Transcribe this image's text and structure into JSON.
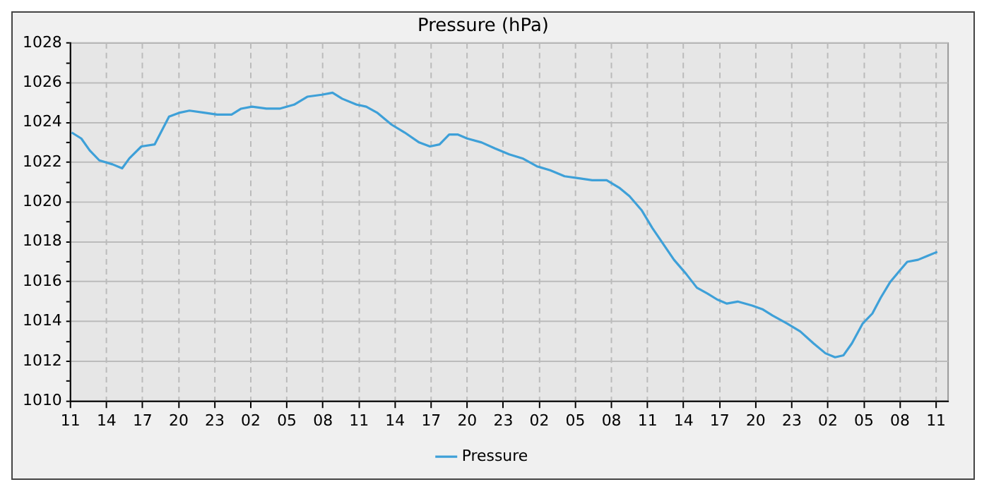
{
  "chart_data": {
    "type": "line",
    "title": "Pressure (hPa)",
    "series": [
      {
        "name": "Pressure",
        "color": "#3ea0d8",
        "x": [
          "--01-01T11:06",
          "--01-01T11:54",
          "--01-01T12:36",
          "--01-01T13:24",
          "--01-01T14:30",
          "--01-01T15:18",
          "--01-01T15:54",
          "--01-01T16:54",
          "--01-01T18:00",
          "--01-01T18:36",
          "--01-01T19:12",
          "--01-01T20:06",
          "--01-01T20:54",
          "--01-01T22:06",
          "--01-01T23:12",
          "--01-02T00:24",
          "--01-02T01:12",
          "--01-02T02:06",
          "--01-02T03:18",
          "--01-02T04:24",
          "--01-02T05:36",
          "--01-02T06:42",
          "--01-02T07:54",
          "--01-02T08:48",
          "--01-02T09:36",
          "--01-02T10:48",
          "--01-02T11:36",
          "--01-02T12:30",
          "--01-02T13:42",
          "--01-02T14:48",
          "--01-02T16:00",
          "--01-02T16:54",
          "--01-02T17:42",
          "--01-02T18:30",
          "--01-02T19:12",
          "--01-02T20:00",
          "--01-02T21:12",
          "--01-02T22:18",
          "--01-02T23:30",
          "--01-03T00:36",
          "--01-03T01:48",
          "--01-03T02:54",
          "--01-03T04:06",
          "--01-03T05:18",
          "--01-03T06:24",
          "--01-03T07:36",
          "--01-03T08:42",
          "--01-03T09:30",
          "--01-03T10:30",
          "--01-03T11:24",
          "--01-03T12:18",
          "--01-03T13:12",
          "--01-03T14:12",
          "--01-03T15:06",
          "--01-03T16:00",
          "--01-03T16:48",
          "--01-03T17:36",
          "--01-03T18:30",
          "--01-03T19:42",
          "--01-03T20:36",
          "--01-03T21:24",
          "--01-03T22:36",
          "--01-03T23:42",
          "--01-04T00:48",
          "--01-04T01:48",
          "--01-04T02:36",
          "--01-04T03:18",
          "--01-04T04:00",
          "--01-04T04:54",
          "--01-04T05:42",
          "--01-04T06:24",
          "--01-04T07:12",
          "--01-04T07:54",
          "--01-04T08:36",
          "--01-04T09:30",
          "--01-04T10:18",
          "--01-04T11:06"
        ],
        "values": [
          1023.5,
          1023.2,
          1022.6,
          1022.1,
          1021.9,
          1021.7,
          1022.2,
          1022.8,
          1022.9,
          1023.6,
          1024.3,
          1024.5,
          1024.6,
          1024.5,
          1024.4,
          1024.4,
          1024.7,
          1024.8,
          1024.7,
          1024.7,
          1024.9,
          1025.3,
          1025.4,
          1025.5,
          1025.2,
          1024.9,
          1024.8,
          1024.5,
          1023.9,
          1023.5,
          1023.0,
          1022.8,
          1022.9,
          1023.4,
          1023.4,
          1023.2,
          1023.0,
          1022.7,
          1022.4,
          1022.2,
          1021.8,
          1021.6,
          1021.3,
          1021.2,
          1021.1,
          1021.1,
          1020.7,
          1020.3,
          1019.6,
          1018.7,
          1017.9,
          1017.1,
          1016.4,
          1015.7,
          1015.4,
          1015.1,
          1014.9,
          1015.0,
          1014.8,
          1014.6,
          1014.3,
          1013.9,
          1013.5,
          1012.9,
          1012.4,
          1012.2,
          1012.3,
          1012.9,
          1013.9,
          1014.4,
          1015.2,
          1016.0,
          1016.5,
          1017.0,
          1017.1,
          1017.3,
          1017.5
        ]
      }
    ],
    "xlim": [
      "--01-01T11:00",
      "--01-04T12:00"
    ],
    "xticks": [
      {
        "value": "--01-01T11:00",
        "label": "11"
      },
      {
        "value": "--01-01T14:00",
        "label": "14"
      },
      {
        "value": "--01-01T17:00",
        "label": "17"
      },
      {
        "value": "--01-01T20:00",
        "label": "20"
      },
      {
        "value": "--01-01T23:00",
        "label": "23"
      },
      {
        "value": "--01-02T02:00",
        "label": "02"
      },
      {
        "value": "--01-02T05:00",
        "label": "05"
      },
      {
        "value": "--01-02T08:00",
        "label": "08"
      },
      {
        "value": "--01-02T11:00",
        "label": "11"
      },
      {
        "value": "--01-02T14:00",
        "label": "14"
      },
      {
        "value": "--01-02T17:00",
        "label": "17"
      },
      {
        "value": "--01-02T20:00",
        "label": "20"
      },
      {
        "value": "--01-02T23:00",
        "label": "23"
      },
      {
        "value": "--01-03T02:00",
        "label": "02"
      },
      {
        "value": "--01-03T05:00",
        "label": "05"
      },
      {
        "value": "--01-03T08:00",
        "label": "08"
      },
      {
        "value": "--01-03T11:00",
        "label": "11"
      },
      {
        "value": "--01-03T14:00",
        "label": "14"
      },
      {
        "value": "--01-03T17:00",
        "label": "17"
      },
      {
        "value": "--01-03T20:00",
        "label": "20"
      },
      {
        "value": "--01-03T23:00",
        "label": "23"
      },
      {
        "value": "--01-04T02:00",
        "label": "02"
      },
      {
        "value": "--01-04T05:00",
        "label": "05"
      },
      {
        "value": "--01-04T08:00",
        "label": "08"
      },
      {
        "value": "--01-04T11:00",
        "label": "11"
      }
    ],
    "ylim": [
      1010,
      1028
    ],
    "yticks": [
      1010,
      {
        "value": 1011,
        "label": null
      },
      1012,
      {
        "value": 1013,
        "label": null
      },
      1014,
      {
        "value": 1015,
        "label": null
      },
      1016,
      {
        "value": 1017,
        "label": null
      },
      1018,
      {
        "value": 1019,
        "label": null
      },
      1020,
      {
        "value": 1021,
        "label": null
      },
      1022,
      {
        "value": 1023,
        "label": null
      },
      1024,
      {
        "value": 1025,
        "label": null
      },
      1026,
      {
        "value": 1027,
        "label": null
      },
      1028
    ],
    "grid": true,
    "legend": "bottom",
    "marker": "none",
    "line_style": "solid"
  }
}
